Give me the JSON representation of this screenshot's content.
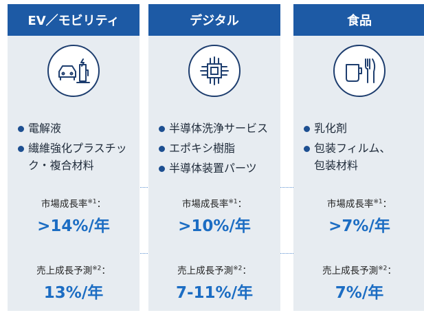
{
  "columns": [
    {
      "title": "EV／モビリティ",
      "items": [
        [
          "電解液"
        ],
        [
          "繊維強化プラスチッ",
          "ク・複合材料"
        ]
      ],
      "market": {
        "label": "市場成長率",
        "note": "※1",
        "sep": "：",
        "value": ">14%/年"
      },
      "sales": {
        "label": "売上成長予測",
        "note": "※2",
        "sep": "：",
        "value": "13%/年"
      }
    },
    {
      "title": "デジタル",
      "items": [
        [
          "半導体洗浄サービス"
        ],
        [
          "エポキシ樹脂"
        ],
        [
          "半導体装置パーツ"
        ]
      ],
      "market": {
        "label": "市場成長率",
        "note": "※1",
        "sep": "：",
        "value": ">10%/年"
      },
      "sales": {
        "label": "売上成長予測",
        "note": "※2",
        "sep": "：",
        "value": "7-11%/年"
      }
    },
    {
      "title": "食品",
      "items": [
        [
          "乳化剤"
        ],
        [
          "包装フィルム、",
          "包装材料"
        ]
      ],
      "market": {
        "label": "市場成長率",
        "note": "※1",
        "sep": "：",
        "value": ">7%/年"
      },
      "sales": {
        "label": "売上成長予測",
        "note": "※2",
        "sep": "：",
        "value": "7%/年"
      }
    }
  ]
}
